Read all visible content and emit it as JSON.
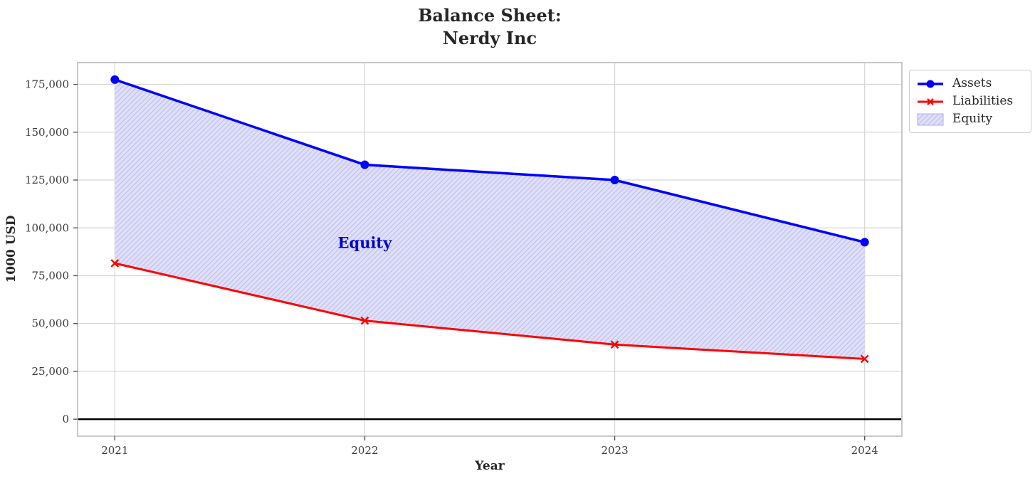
{
  "title": "Balance Sheet:\nNerdy Inc",
  "chart_data": {
    "type": "area",
    "x_categories": [
      "2021",
      "2022",
      "2023",
      "2024"
    ],
    "series": [
      {
        "name": "Assets",
        "color": "#0000ff",
        "marker": "circle",
        "line_width": 3.5,
        "values": [
          177500,
          133000,
          125000,
          92500
        ]
      },
      {
        "name": "Liabilities",
        "color": "#ff0000",
        "marker": "x",
        "line_width": 3,
        "values": [
          81500,
          51500,
          39000,
          31500
        ]
      }
    ],
    "fill_between": {
      "name": "Equity",
      "between": [
        "Assets",
        "Liabilities"
      ],
      "values": [
        96000,
        81500,
        86000,
        61000
      ],
      "fill_color": "#dfdff7",
      "hatch_color": "#c0c0ef",
      "hatch": "//"
    },
    "annotation": {
      "text": "Equity",
      "x": "2022",
      "y": 92250,
      "color": "#0000cc"
    },
    "xlabel": "Year",
    "ylabel": "1000 USD",
    "ylim": [
      -8875,
      186375
    ],
    "yticks": [
      0,
      25000,
      50000,
      75000,
      100000,
      125000,
      150000,
      175000
    ],
    "ytick_labels": [
      "0",
      "25,000",
      "50,000",
      "75,000",
      "100,000",
      "125,000",
      "150,000",
      "175,000"
    ],
    "zero_line": true,
    "grid": true,
    "legend": {
      "position": "upper-right-outside",
      "entries": [
        "Assets",
        "Liabilities",
        "Equity"
      ]
    },
    "colors": {
      "grid": "#d5d5d5",
      "spine": "#c8c8c8",
      "zero_line": "#000000",
      "tick_text": "#3a3a3a",
      "tick_mark": "#555555"
    }
  }
}
